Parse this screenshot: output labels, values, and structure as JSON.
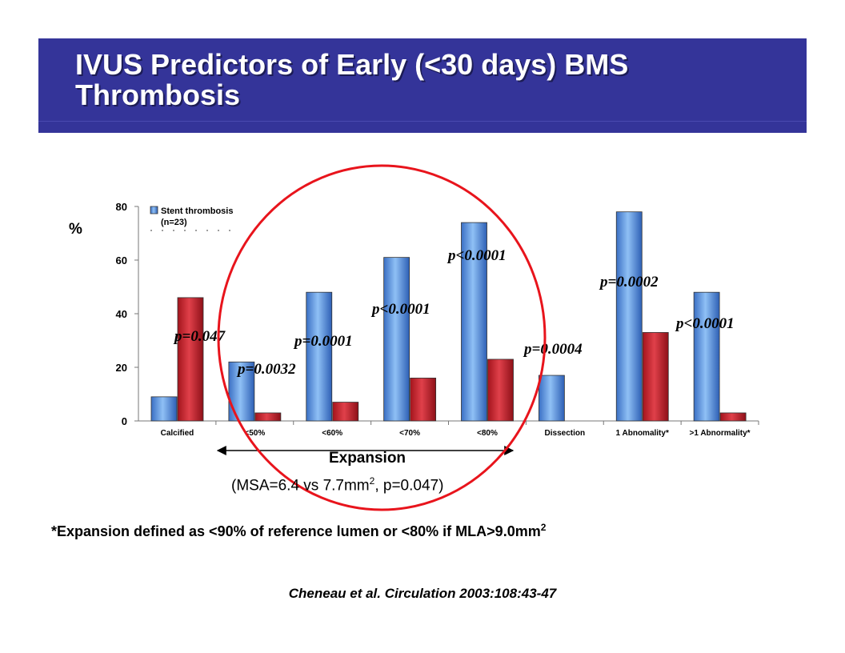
{
  "title": "IVUS Predictors of Early (<30 days) BMS Thrombosis",
  "chart_data": {
    "type": "bar",
    "y_unit_label": "%",
    "ylim": [
      0,
      80
    ],
    "yticks": [
      0,
      20,
      40,
      60,
      80
    ],
    "categories": [
      "Calcified",
      "<50%",
      "<60%",
      "<70%",
      "<80%",
      "Dissection",
      "1 Abnomality*",
      ">1 Abnormality*"
    ],
    "series": [
      {
        "name": "Stent thrombosis (n=23)",
        "color": "#4f8fe0",
        "values": [
          9,
          22,
          48,
          61,
          74,
          17,
          78,
          48
        ]
      },
      {
        "name": "",
        "color": "#c8202a",
        "values": [
          46,
          3,
          7,
          16,
          23,
          0,
          33,
          3
        ]
      }
    ],
    "legend": {
      "line1": "Stent thrombosis",
      "line2": "(n=23)"
    },
    "p_values": [
      "p=0.047",
      "p=0.0032",
      "p=0.0001",
      "p<0.0001",
      "p<0.0001",
      "p=0.0004",
      "p=0.0002",
      "p<0.0001"
    ],
    "group_label": "Expansion",
    "highlight_color": "#e8141c"
  },
  "msa_note": {
    "prefix": "(MSA=6.4 vs 7.7mm",
    "sup": "2",
    "suffix": ", p=0.047)"
  },
  "footnote": {
    "text": "*Expansion  defined as <90% of reference lumen or <80% if MLA>9.0mm",
    "sup": "2"
  },
  "citation": "Cheneau et al. Circulation 2003:108:43-47"
}
